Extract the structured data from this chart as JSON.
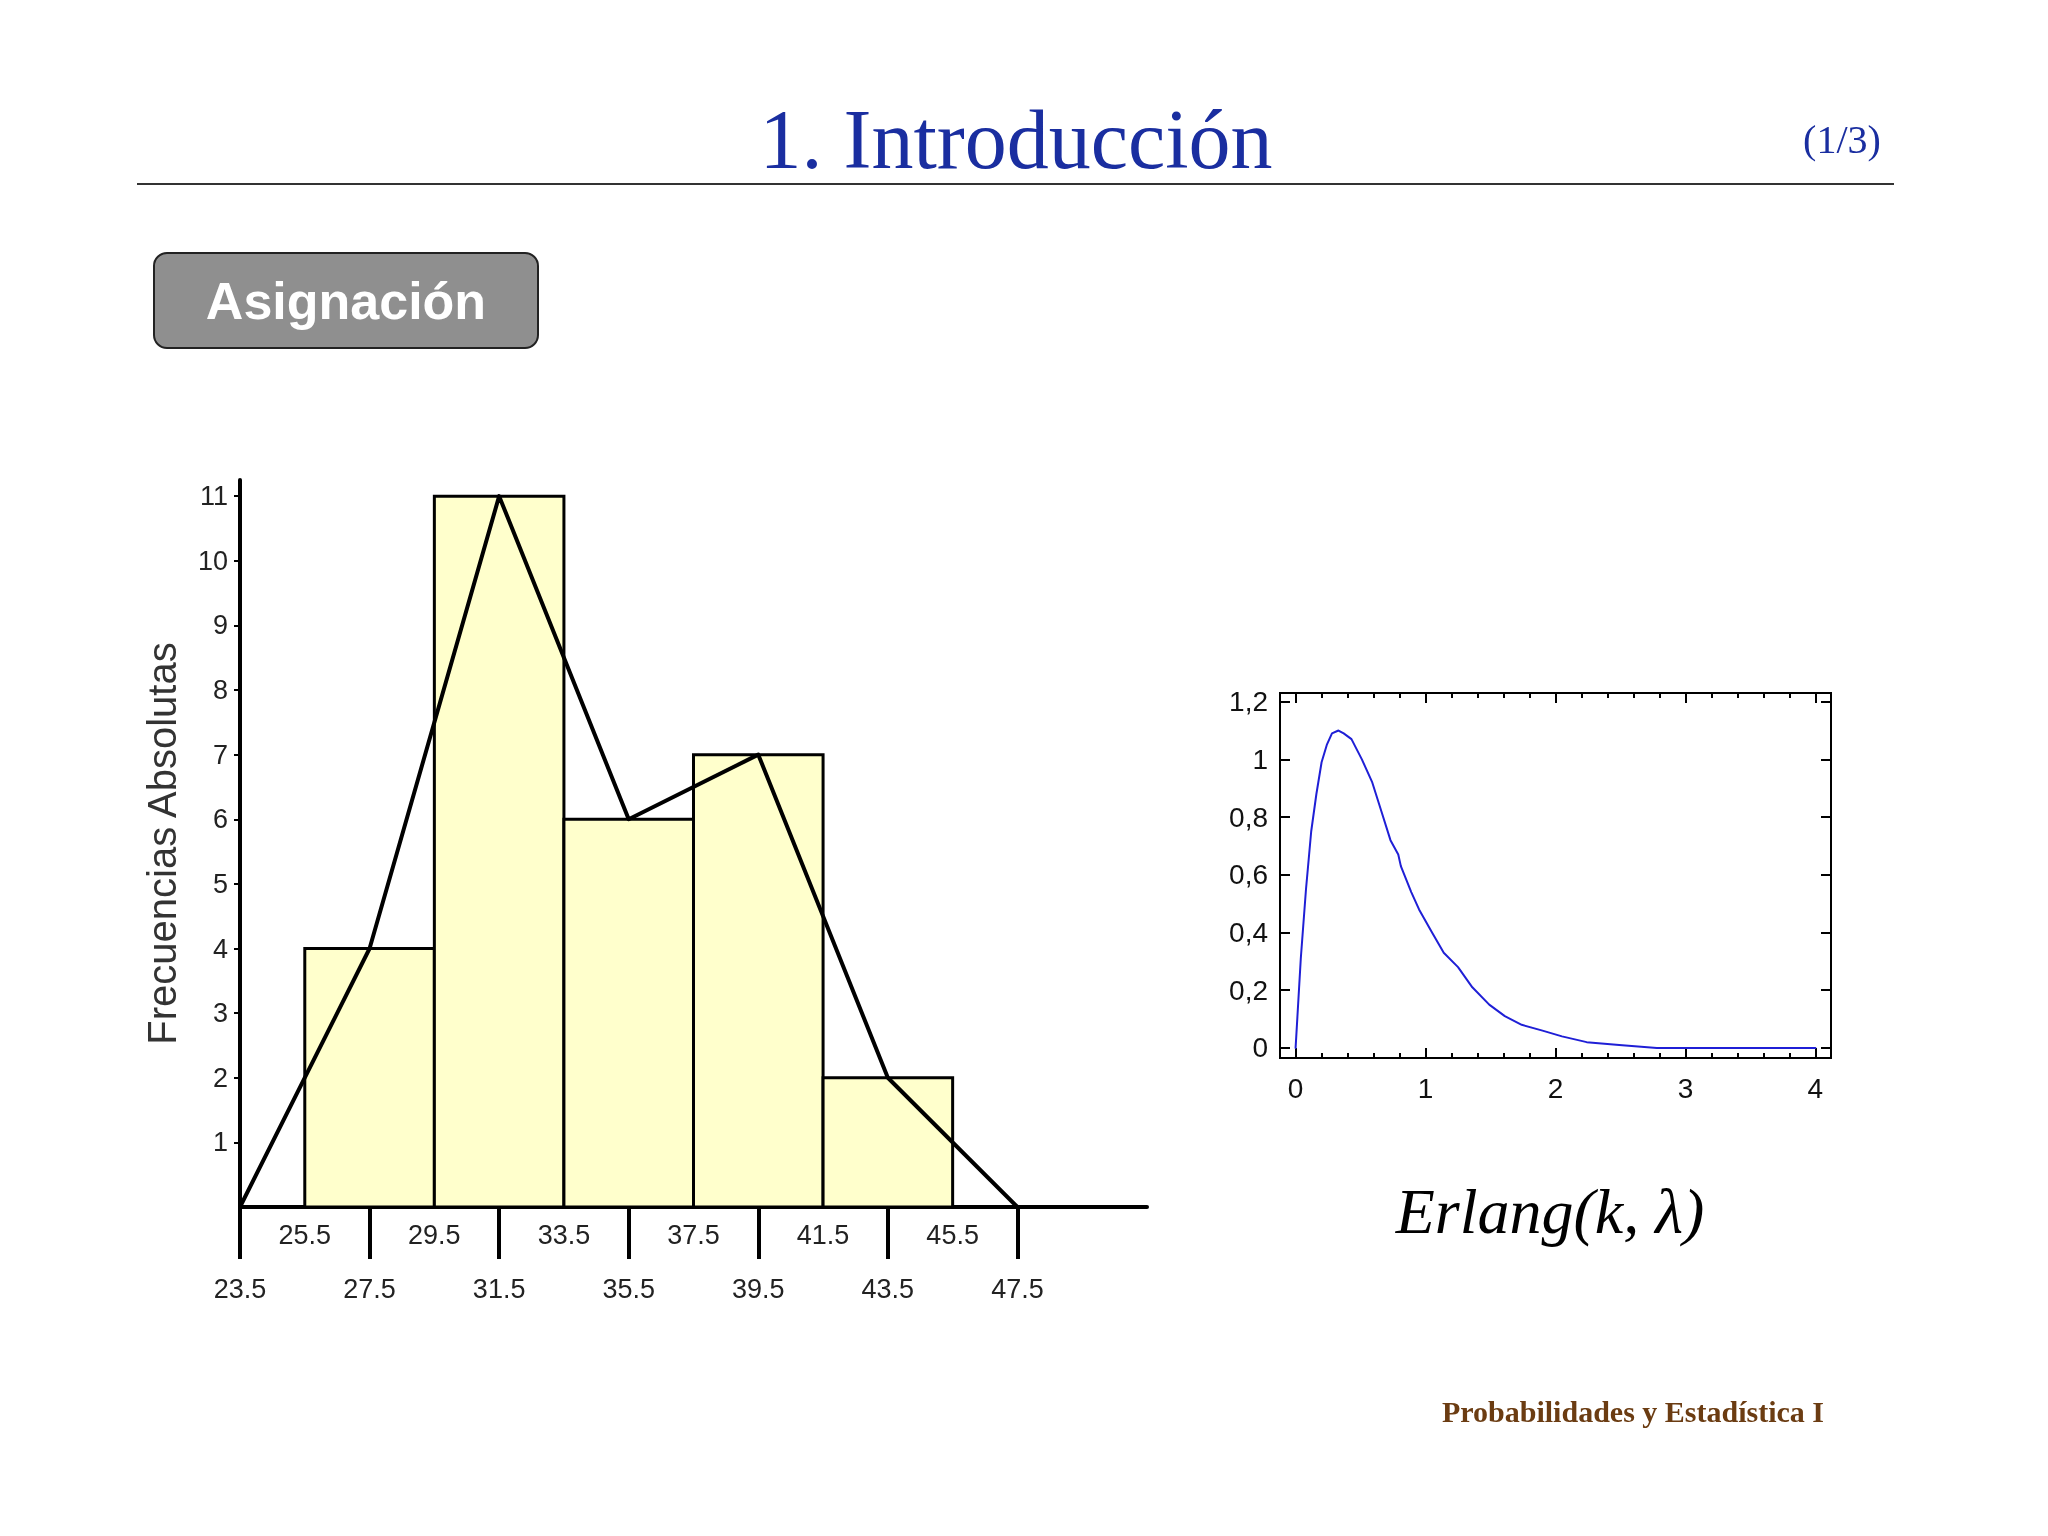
{
  "chart_data": [
    {
      "type": "histogram",
      "title": "1. Introducción",
      "subtitle": "Asignación",
      "annotations": [
        "(1/3)"
      ],
      "ylabel": "Frecuencias Absolutas",
      "series": [
        {
          "type": "histogram",
          "bins": [
            25.5,
            29.5,
            33.5,
            37.5,
            41.5,
            45.5
          ],
          "values": [
            4,
            11,
            6,
            7,
            2
          ],
          "color": "#ffffcc"
        },
        {
          "type": "line",
          "x": [
            23.5,
            27.5,
            31.5,
            35.5,
            39.5,
            43.5,
            47.5
          ],
          "values": [
            0,
            4,
            11,
            6,
            7,
            2,
            0
          ],
          "color": "#000000"
        }
      ],
      "xlim": [
        23.5,
        51.5
      ],
      "xticks": [
        23.5,
        27.5,
        31.5,
        35.5,
        39.5,
        43.5,
        47.5
      ],
      "x2lim": [
        23.5,
        51.5
      ],
      "x2ticks": [
        25.5,
        29.5,
        33.5,
        37.5,
        41.5,
        45.5
      ],
      "ylim": [
        0,
        11.25
      ],
      "yticks": [
        1,
        2,
        3,
        4,
        5,
        6,
        7,
        8,
        9,
        10,
        11
      ]
    },
    {
      "type": "line",
      "annotations": [
        "Erlang(k, λ)",
        "Probabilidades y Estadística I"
      ],
      "x": [
        0,
        0.04,
        0.08,
        0.12,
        0.16,
        0.2,
        0.24,
        0.28,
        0.33,
        0.37,
        0.43,
        0.51,
        0.59,
        0.66,
        0.73,
        0.79,
        0.81,
        0.89,
        0.95,
        1.05,
        1.14,
        1.25,
        1.36,
        1.49,
        1.61,
        1.74,
        1.9,
        2.05,
        2.24,
        2.49,
        2.78,
        3.18,
        4
      ],
      "values": [
        0,
        0.31,
        0.55,
        0.75,
        0.88,
        0.99,
        1.05,
        1.09,
        1.1,
        1.09,
        1.07,
        1.0,
        0.92,
        0.82,
        0.72,
        0.67,
        0.63,
        0.54,
        0.48,
        0.4,
        0.33,
        0.28,
        0.21,
        0.15,
        0.11,
        0.08,
        0.06,
        0.04,
        0.02,
        0.01,
        0.0,
        0,
        0
      ],
      "color": "#1f1fd6",
      "xlim": [
        -0.12,
        4.12
      ],
      "xticks": [
        0,
        {
          "value": 0.2,
          "label": null
        },
        {
          "value": 0.4,
          "label": null
        },
        {
          "value": 0.6,
          "label": null
        },
        {
          "value": 0.8,
          "label": null
        },
        1,
        {
          "value": 1.2,
          "label": null
        },
        {
          "value": 1.4,
          "label": null
        },
        {
          "value": 1.6,
          "label": null
        },
        {
          "value": 1.8,
          "label": null
        },
        2,
        {
          "value": 2.2,
          "label": null
        },
        {
          "value": 2.4,
          "label": null
        },
        {
          "value": 2.6,
          "label": null
        },
        {
          "value": 2.8,
          "label": null
        },
        3,
        {
          "value": 3.2,
          "label": null
        },
        {
          "value": 3.4,
          "label": null
        },
        {
          "value": 3.6,
          "label": null
        },
        {
          "value": 3.8,
          "label": null
        },
        4
      ],
      "ylim": [
        -0.035,
        1.23
      ],
      "yticks": [
        0,
        {
          "value": 0.2,
          "label": "0,2"
        },
        {
          "value": 0.4,
          "label": "0,4"
        },
        {
          "value": 0.6,
          "label": "0,6"
        },
        {
          "value": 0.8,
          "label": "0,8"
        },
        1,
        {
          "value": 1.2,
          "label": "1,2"
        }
      ]
    }
  ]
}
